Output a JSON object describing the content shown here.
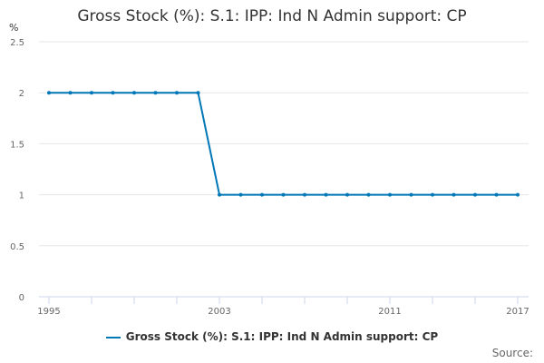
{
  "chart_data": {
    "type": "line",
    "title": "Gross Stock (%): S.1: IPP: Ind N Admin support: CP",
    "ylabel": "%",
    "xlabel": "",
    "ylim": [
      0,
      2.5
    ],
    "yticks": [
      "0",
      "0.5",
      "1",
      "1.5",
      "2",
      "2.5"
    ],
    "xticks": [
      "1995",
      "2003",
      "2011",
      "2017"
    ],
    "xlim": [
      1995,
      2017
    ],
    "grid": true,
    "legend_position": "bottom",
    "series": [
      {
        "name": "Gross Stock (%): S.1: IPP: Ind N Admin support: CP",
        "color": "#0077b6",
        "x": [
          1995,
          1996,
          1997,
          1998,
          1999,
          2000,
          2001,
          2002,
          2003,
          2004,
          2005,
          2006,
          2007,
          2008,
          2009,
          2010,
          2011,
          2012,
          2013,
          2014,
          2015,
          2016,
          2017
        ],
        "values": [
          2,
          2,
          2,
          2,
          2,
          2,
          2,
          2,
          1,
          1,
          1,
          1,
          1,
          1,
          1,
          1,
          1,
          1,
          1,
          1,
          1,
          1,
          1
        ]
      }
    ]
  },
  "source_label": "Source:"
}
